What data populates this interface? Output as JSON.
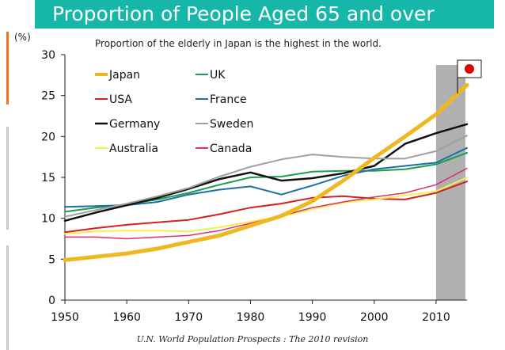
{
  "header": {
    "title": "Proportion of People Aged 65 and over",
    "subtitle": "Proportion of the elderly in Japan is the highest in the world.",
    "unit": "(%)",
    "source": "U.N. World Population Prospects : The 2010 revision"
  },
  "colors": {
    "title_bg": "#16b6a9",
    "accent_orange": "#e87722",
    "accent_gray": "#c8c8c8",
    "highlight_band": "#b0b0b0",
    "flag_red": "#e00000"
  },
  "chart_data": {
    "type": "line",
    "title": "Proportion of People Aged 65 and over",
    "ylabel": "(%)",
    "xlabel": "",
    "x": [
      1950,
      1955,
      1960,
      1965,
      1970,
      1975,
      1980,
      1985,
      1990,
      1995,
      2000,
      2005,
      2010,
      2015
    ],
    "xlim": [
      1950,
      2015
    ],
    "ylim": [
      0,
      30
    ],
    "xticks": [
      1950,
      1960,
      1970,
      1980,
      1990,
      2000,
      2010
    ],
    "yticks": [
      0,
      5,
      10,
      15,
      20,
      25,
      30
    ],
    "highlight_x_range": [
      2010,
      2015
    ],
    "grid": false,
    "legend_position": "top-left",
    "series": [
      {
        "name": "Japan",
        "color": "#f0b820",
        "width": 5,
        "values": [
          4.9,
          5.3,
          5.7,
          6.3,
          7.1,
          7.9,
          9.1,
          10.3,
          12.1,
          14.6,
          17.4,
          20.0,
          22.7,
          26.3
        ]
      },
      {
        "name": "UK",
        "color": "#1a9e50",
        "width": 2,
        "values": [
          10.8,
          11.3,
          11.7,
          12.3,
          13.1,
          14.1,
          15.0,
          15.1,
          15.7,
          15.8,
          15.8,
          16.0,
          16.6,
          18.0
        ]
      },
      {
        "name": "USA",
        "color": "#d42020",
        "width": 2,
        "values": [
          8.3,
          8.8,
          9.2,
          9.5,
          9.8,
          10.5,
          11.3,
          11.8,
          12.5,
          12.7,
          12.4,
          12.3,
          13.1,
          14.5
        ]
      },
      {
        "name": "France",
        "color": "#1e6fa8",
        "width": 2,
        "values": [
          11.4,
          11.5,
          11.6,
          12.0,
          12.9,
          13.5,
          13.9,
          12.9,
          14.0,
          15.2,
          16.0,
          16.4,
          16.8,
          18.6
        ]
      },
      {
        "name": "Germany",
        "color": "#111111",
        "width": 2.5,
        "values": [
          9.7,
          10.7,
          11.6,
          12.5,
          13.6,
          14.8,
          15.6,
          14.6,
          14.9,
          15.5,
          16.4,
          19.1,
          20.4,
          21.5
        ]
      },
      {
        "name": "Sweden",
        "color": "#a0a0a0",
        "width": 2,
        "values": [
          10.2,
          11.0,
          11.8,
          12.7,
          13.7,
          15.1,
          16.3,
          17.2,
          17.8,
          17.5,
          17.3,
          17.3,
          18.2,
          20.1
        ]
      },
      {
        "name": "Australia",
        "color": "#f5f050",
        "width": 2,
        "values": [
          8.1,
          8.4,
          8.5,
          8.5,
          8.4,
          8.9,
          9.6,
          10.2,
          11.1,
          11.9,
          12.3,
          12.8,
          13.3,
          15.0
        ]
      },
      {
        "name": "Canada",
        "color": "#d83070",
        "width": 1.5,
        "values": [
          7.7,
          7.7,
          7.5,
          7.7,
          7.9,
          8.5,
          9.4,
          10.3,
          11.3,
          12.0,
          12.6,
          13.1,
          14.1,
          16.1
        ]
      }
    ]
  }
}
